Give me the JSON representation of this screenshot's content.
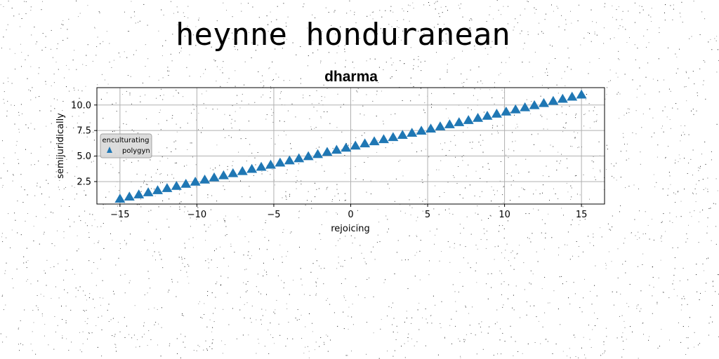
{
  "page": {
    "heading": "heynne honduranean"
  },
  "colors": {
    "marker": "#1f77b4",
    "grid": "#b0b0b0",
    "legend_bg": "#d9d9d9"
  },
  "chart_data": {
    "type": "scatter",
    "title": "dharma",
    "xlabel": "rejoicing",
    "ylabel": "semijuridically",
    "xlim": [
      -16.5,
      16.5
    ],
    "ylim": [
      0.3,
      11.7
    ],
    "xticks": [
      -15,
      -10,
      -5,
      0,
      5,
      10,
      15
    ],
    "xtick_labels": [
      "−15",
      "−10",
      "−5",
      "0",
      "5",
      "10",
      "15"
    ],
    "yticks": [
      2.5,
      5.0,
      7.5,
      10.0
    ],
    "ytick_labels": [
      "2.5",
      "5.0",
      "7.5",
      "10.0"
    ],
    "grid": true,
    "marker": "triangle-up",
    "legend": {
      "title": "enculturating",
      "position": "center-left"
    },
    "series": [
      {
        "name": "polygyn",
        "x_start": -15,
        "x_end": 15,
        "n_points": 50,
        "y_start": 0.8,
        "y_end": 11.0
      }
    ]
  }
}
